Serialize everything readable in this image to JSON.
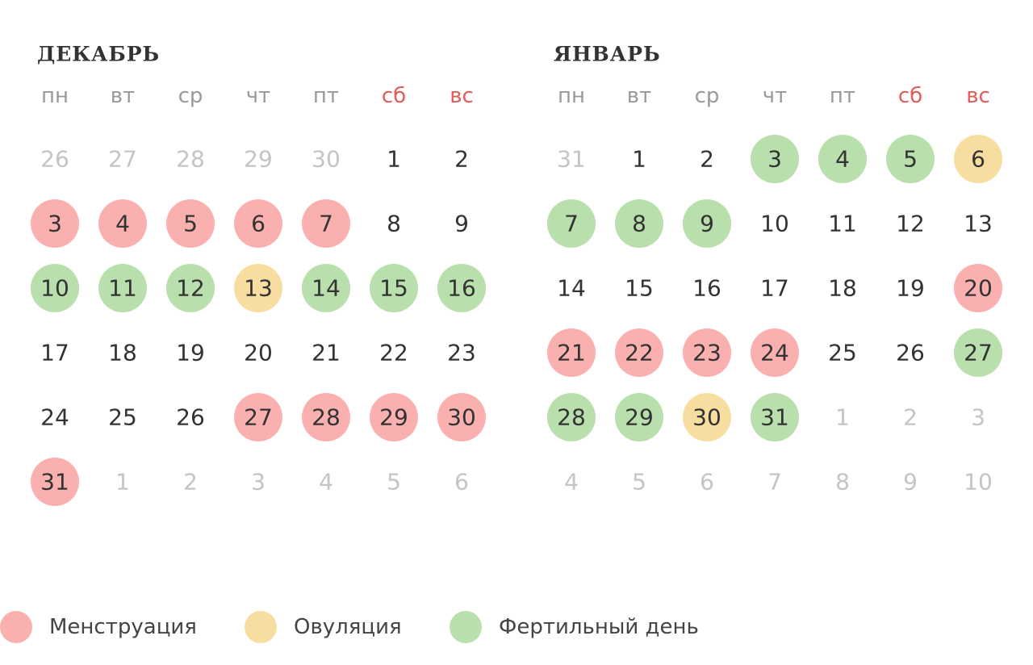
{
  "months": [
    {
      "title": "ДЕКАБРЬ",
      "weekdays": [
        {
          "label": "пн",
          "color": "#999999"
        },
        {
          "label": "вт",
          "color": "#999999"
        },
        {
          "label": "ср",
          "color": "#999999"
        },
        {
          "label": "чт",
          "color": "#999999"
        },
        {
          "label": "пт",
          "color": "#999999"
        },
        {
          "label": "сб",
          "color": "#e35b5b"
        },
        {
          "label": "вс",
          "color": "#e35b5b"
        }
      ],
      "weeks": [
        [
          {
            "text": "26",
            "muted": true
          },
          {
            "text": "27",
            "muted": true
          },
          {
            "text": "28",
            "muted": true
          },
          {
            "text": "29",
            "muted": true
          },
          {
            "text": "30",
            "muted": true
          },
          {
            "text": "1"
          },
          {
            "text": "2"
          }
        ],
        [
          {
            "text": "3",
            "fill": "#fbb0b0"
          },
          {
            "text": "4",
            "fill": "#fbb0b0"
          },
          {
            "text": "5",
            "fill": "#fbb0b0"
          },
          {
            "text": "6",
            "fill": "#fbb0b0"
          },
          {
            "text": "7",
            "fill": "#fbb0b0"
          },
          {
            "text": "8"
          },
          {
            "text": "9"
          }
        ],
        [
          {
            "text": "10",
            "fill": "#b9dfad"
          },
          {
            "text": "11",
            "fill": "#b9dfad"
          },
          {
            "text": "12",
            "fill": "#b9dfad"
          },
          {
            "text": "13",
            "fill": "#f7dea0"
          },
          {
            "text": "14",
            "fill": "#b9dfad"
          },
          {
            "text": "15",
            "fill": "#b9dfad"
          },
          {
            "text": "16",
            "fill": "#b9dfad"
          }
        ],
        [
          {
            "text": "17"
          },
          {
            "text": "18"
          },
          {
            "text": "19"
          },
          {
            "text": "20"
          },
          {
            "text": "21"
          },
          {
            "text": "22"
          },
          {
            "text": "23"
          }
        ],
        [
          {
            "text": "24"
          },
          {
            "text": "25"
          },
          {
            "text": "26"
          },
          {
            "text": "27",
            "fill": "#fbb0b0"
          },
          {
            "text": "28",
            "fill": "#fbb0b0"
          },
          {
            "text": "29",
            "fill": "#fbb0b0"
          },
          {
            "text": "30",
            "fill": "#fbb0b0"
          }
        ],
        [
          {
            "text": "31",
            "fill": "#fbb0b0"
          },
          {
            "text": "1",
            "muted": true
          },
          {
            "text": "2",
            "muted": true
          },
          {
            "text": "3",
            "muted": true
          },
          {
            "text": "4",
            "muted": true
          },
          {
            "text": "5",
            "muted": true
          },
          {
            "text": "6",
            "muted": true
          }
        ]
      ]
    },
    {
      "title": "ЯНВАРЬ",
      "weekdays": [
        {
          "label": "пн",
          "color": "#999999"
        },
        {
          "label": "вт",
          "color": "#999999"
        },
        {
          "label": "ср",
          "color": "#999999"
        },
        {
          "label": "чт",
          "color": "#999999"
        },
        {
          "label": "пт",
          "color": "#999999"
        },
        {
          "label": "сб",
          "color": "#e35b5b"
        },
        {
          "label": "вс",
          "color": "#e35b5b"
        }
      ],
      "weeks": [
        [
          {
            "text": "31",
            "muted": true
          },
          {
            "text": "1"
          },
          {
            "text": "2"
          },
          {
            "text": "3",
            "fill": "#b9dfad"
          },
          {
            "text": "4",
            "fill": "#b9dfad"
          },
          {
            "text": "5",
            "fill": "#b9dfad"
          },
          {
            "text": "6",
            "fill": "#f7dea0"
          }
        ],
        [
          {
            "text": "7",
            "fill": "#b9dfad"
          },
          {
            "text": "8",
            "fill": "#b9dfad"
          },
          {
            "text": "9",
            "fill": "#b9dfad"
          },
          {
            "text": "10"
          },
          {
            "text": "11"
          },
          {
            "text": "12"
          },
          {
            "text": "13"
          }
        ],
        [
          {
            "text": "14"
          },
          {
            "text": "15"
          },
          {
            "text": "16"
          },
          {
            "text": "17"
          },
          {
            "text": "18"
          },
          {
            "text": "19"
          },
          {
            "text": "20",
            "fill": "#fbb0b0"
          }
        ],
        [
          {
            "text": "21",
            "fill": "#fbb0b0"
          },
          {
            "text": "22",
            "fill": "#fbb0b0"
          },
          {
            "text": "23",
            "fill": "#fbb0b0"
          },
          {
            "text": "24",
            "fill": "#fbb0b0"
          },
          {
            "text": "25"
          },
          {
            "text": "26"
          },
          {
            "text": "27",
            "fill": "#b9dfad"
          }
        ],
        [
          {
            "text": "28",
            "fill": "#b9dfad"
          },
          {
            "text": "29",
            "fill": "#b9dfad"
          },
          {
            "text": "30",
            "fill": "#f7dea0"
          },
          {
            "text": "31",
            "fill": "#b9dfad"
          },
          {
            "text": "1",
            "muted": true
          },
          {
            "text": "2",
            "muted": true
          },
          {
            "text": "3",
            "muted": true
          }
        ],
        [
          {
            "text": "4",
            "muted": true
          },
          {
            "text": "5",
            "muted": true
          },
          {
            "text": "6",
            "muted": true
          },
          {
            "text": "7",
            "muted": true
          },
          {
            "text": "8",
            "muted": true
          },
          {
            "text": "9",
            "muted": true
          },
          {
            "text": "10",
            "muted": true
          }
        ]
      ]
    }
  ],
  "legend": [
    {
      "label": "Менструация",
      "color": "#fbb0b0"
    },
    {
      "label": "Овуляция",
      "color": "#f7dea0"
    },
    {
      "label": "Фертильный день",
      "color": "#b9dfad"
    }
  ]
}
